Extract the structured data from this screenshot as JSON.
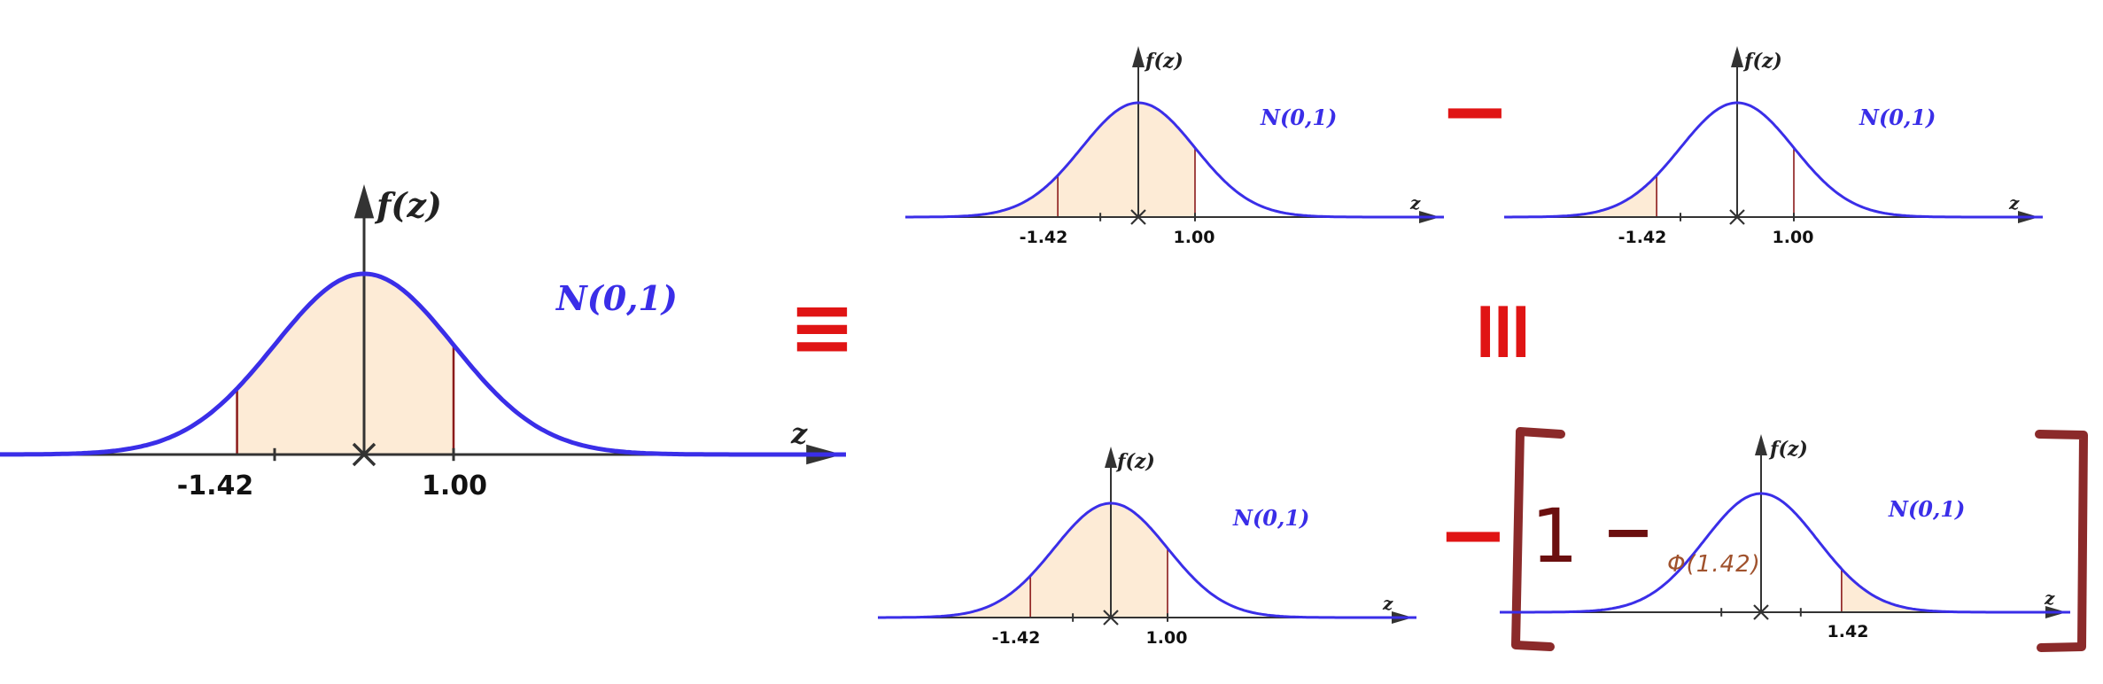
{
  "colors": {
    "curve": "#3a2ee8",
    "fill": "#fdebd6",
    "axis": "#333333",
    "bound": "#8b1a1a",
    "operator": "#e01414",
    "bracket": "#8b2a2a",
    "phi": "#a0522d"
  },
  "labels": {
    "fz": "f(z)",
    "z": "z",
    "dist": "N(0,1)",
    "equiv": "≡",
    "equiv_vertical": "≡",
    "minus": "−",
    "one": "1",
    "bracket_minus": "−",
    "phi": "Φ(1.42)"
  },
  "panels": [
    {
      "id": "main",
      "lower_label": "-1.42",
      "upper_label": "1.00",
      "lower": -1.42,
      "upper": 1.0,
      "shade": "between"
    },
    {
      "id": "top-left",
      "lower_label": "-1.42",
      "upper_label": "1.00",
      "lower": -1.42,
      "upper": 1.0,
      "shade": "below-upper"
    },
    {
      "id": "top-right",
      "lower_label": "-1.42",
      "upper_label": "1.00",
      "lower": -1.42,
      "upper": 1.0,
      "shade": "below-lower"
    },
    {
      "id": "bottom-left",
      "lower_label": "-1.42",
      "upper_label": "1.00",
      "lower": -1.42,
      "upper": 1.0,
      "shade": "below-upper"
    },
    {
      "id": "bottom-right",
      "upper_label": "1.42",
      "upper": 1.42,
      "shade": "above-upper"
    }
  ]
}
